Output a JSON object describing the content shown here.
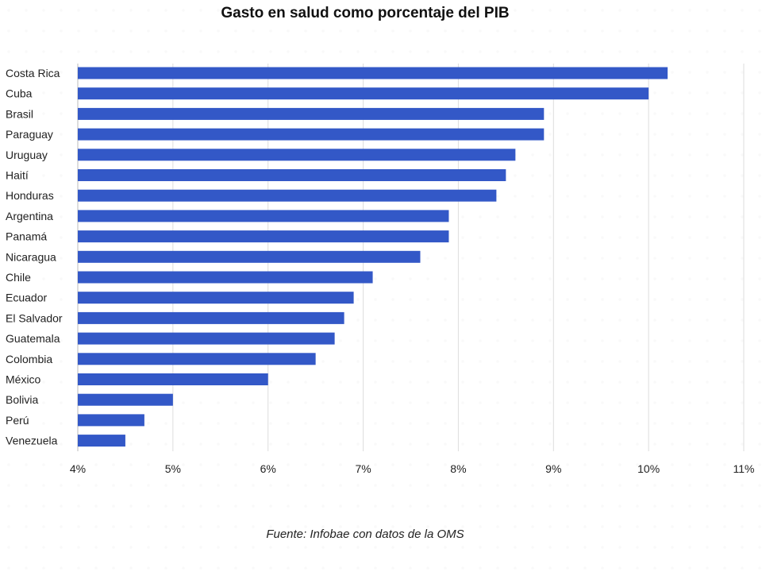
{
  "chart_data": {
    "type": "bar",
    "orientation": "horizontal",
    "title": "Gasto en salud como porcentaje del PIB",
    "source": "Fuente: Infobae con datos de la OMS",
    "categories": [
      "Costa Rica",
      "Cuba",
      "Brasil",
      "Paraguay",
      "Uruguay",
      "Haití",
      "Honduras",
      "Argentina",
      "Panamá",
      "Nicaragua",
      "Chile",
      "Ecuador",
      "El Salvador",
      "Guatemala",
      "Colombia",
      "México",
      "Bolivia",
      "Perú",
      "Venezuela"
    ],
    "values": [
      10.2,
      10.0,
      8.9,
      8.9,
      8.6,
      8.5,
      8.4,
      7.9,
      7.9,
      7.6,
      7.1,
      6.9,
      6.8,
      6.7,
      6.5,
      6.0,
      5.0,
      4.7,
      4.5
    ],
    "xlim": [
      4,
      11
    ],
    "xticks": [
      "4%",
      "5%",
      "6%",
      "7%",
      "8%",
      "9%",
      "10%",
      "11%"
    ],
    "xlabel": "",
    "ylabel": "",
    "grid": true,
    "colors": {
      "bar": "#3358c7",
      "grid": "#dddddd",
      "text": "#222222"
    }
  }
}
